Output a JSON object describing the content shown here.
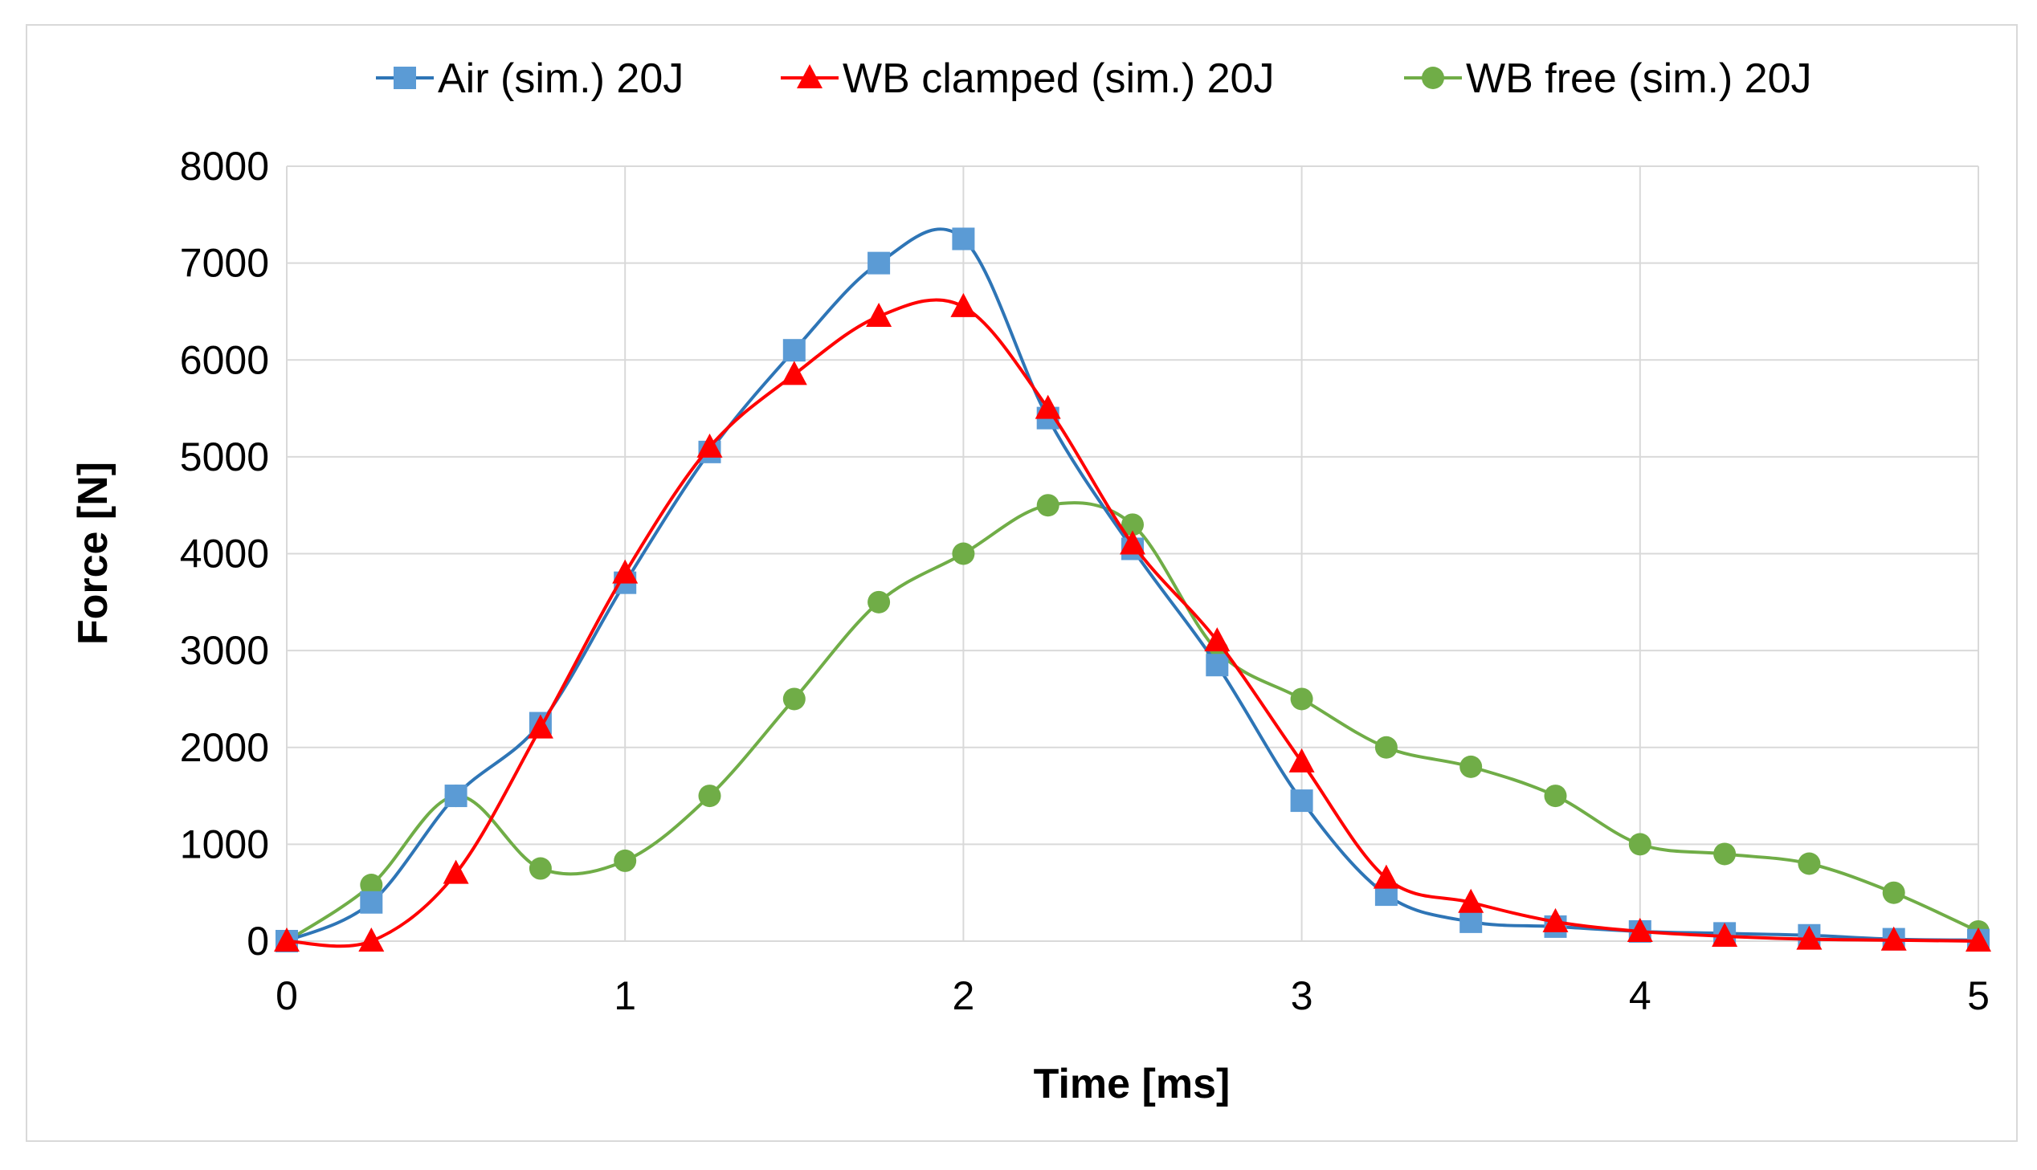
{
  "chart_data": {
    "type": "line",
    "title": "",
    "xlabel": "Time [ms]",
    "ylabel": "Force [N]",
    "xlim": [
      0,
      5
    ],
    "ylim": [
      0,
      8000
    ],
    "xticks": [
      0,
      1,
      2,
      3,
      4,
      5
    ],
    "xtick_labels": [
      "0",
      "1",
      "2",
      "3",
      "4",
      "5"
    ],
    "yticks": [
      0,
      1000,
      2000,
      3000,
      4000,
      5000,
      6000,
      7000,
      8000
    ],
    "ytick_labels": [
      "0",
      "1000",
      "2000",
      "3000",
      "4000",
      "5000",
      "6000",
      "7000",
      "8000"
    ],
    "grid": true,
    "legend_position": "top",
    "x": [
      0,
      0.25,
      0.5,
      0.75,
      1,
      1.25,
      1.5,
      1.75,
      2,
      2.25,
      2.5,
      2.75,
      3,
      3.25,
      3.5,
      3.75,
      4,
      4.25,
      4.5,
      4.75,
      5
    ],
    "series": [
      {
        "name": "Air (sim.) 20J",
        "marker": "square",
        "color": "#2E75B6",
        "marker_color": "#5B9BD5",
        "values": [
          0,
          400,
          1500,
          2250,
          3700,
          5050,
          6100,
          7000,
          7250,
          5400,
          4050,
          2850,
          1450,
          480,
          200,
          150,
          100,
          80,
          60,
          20,
          10
        ]
      },
      {
        "name": "WB clamped (sim.) 20J",
        "marker": "triangle",
        "color": "#FF0000",
        "marker_color": "#FF0000",
        "values": [
          0,
          0,
          700,
          2200,
          3800,
          5100,
          5850,
          6450,
          6550,
          5500,
          4100,
          3100,
          1850,
          650,
          400,
          200,
          100,
          50,
          20,
          10,
          0
        ]
      },
      {
        "name": "WB free (sim.) 20J",
        "marker": "circle",
        "color": "#70AD47",
        "marker_color": "#70AD47",
        "values": [
          0,
          580,
          1500,
          750,
          830,
          1500,
          2500,
          3500,
          4000,
          4500,
          4300,
          3000,
          2500,
          2000,
          1800,
          1500,
          1000,
          900,
          800,
          500,
          100
        ]
      }
    ]
  }
}
